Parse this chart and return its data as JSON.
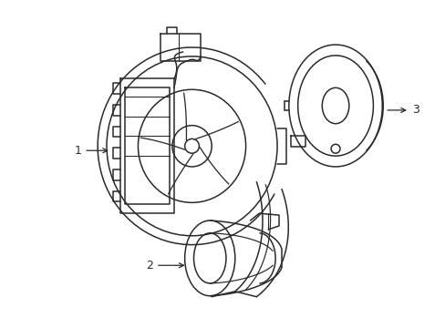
{
  "bg_color": "#ffffff",
  "line_color": "#2a2a2a",
  "line_width": 1.1,
  "label1_text": "1",
  "label2_text": "2",
  "label3_text": "3",
  "font_size": 9
}
